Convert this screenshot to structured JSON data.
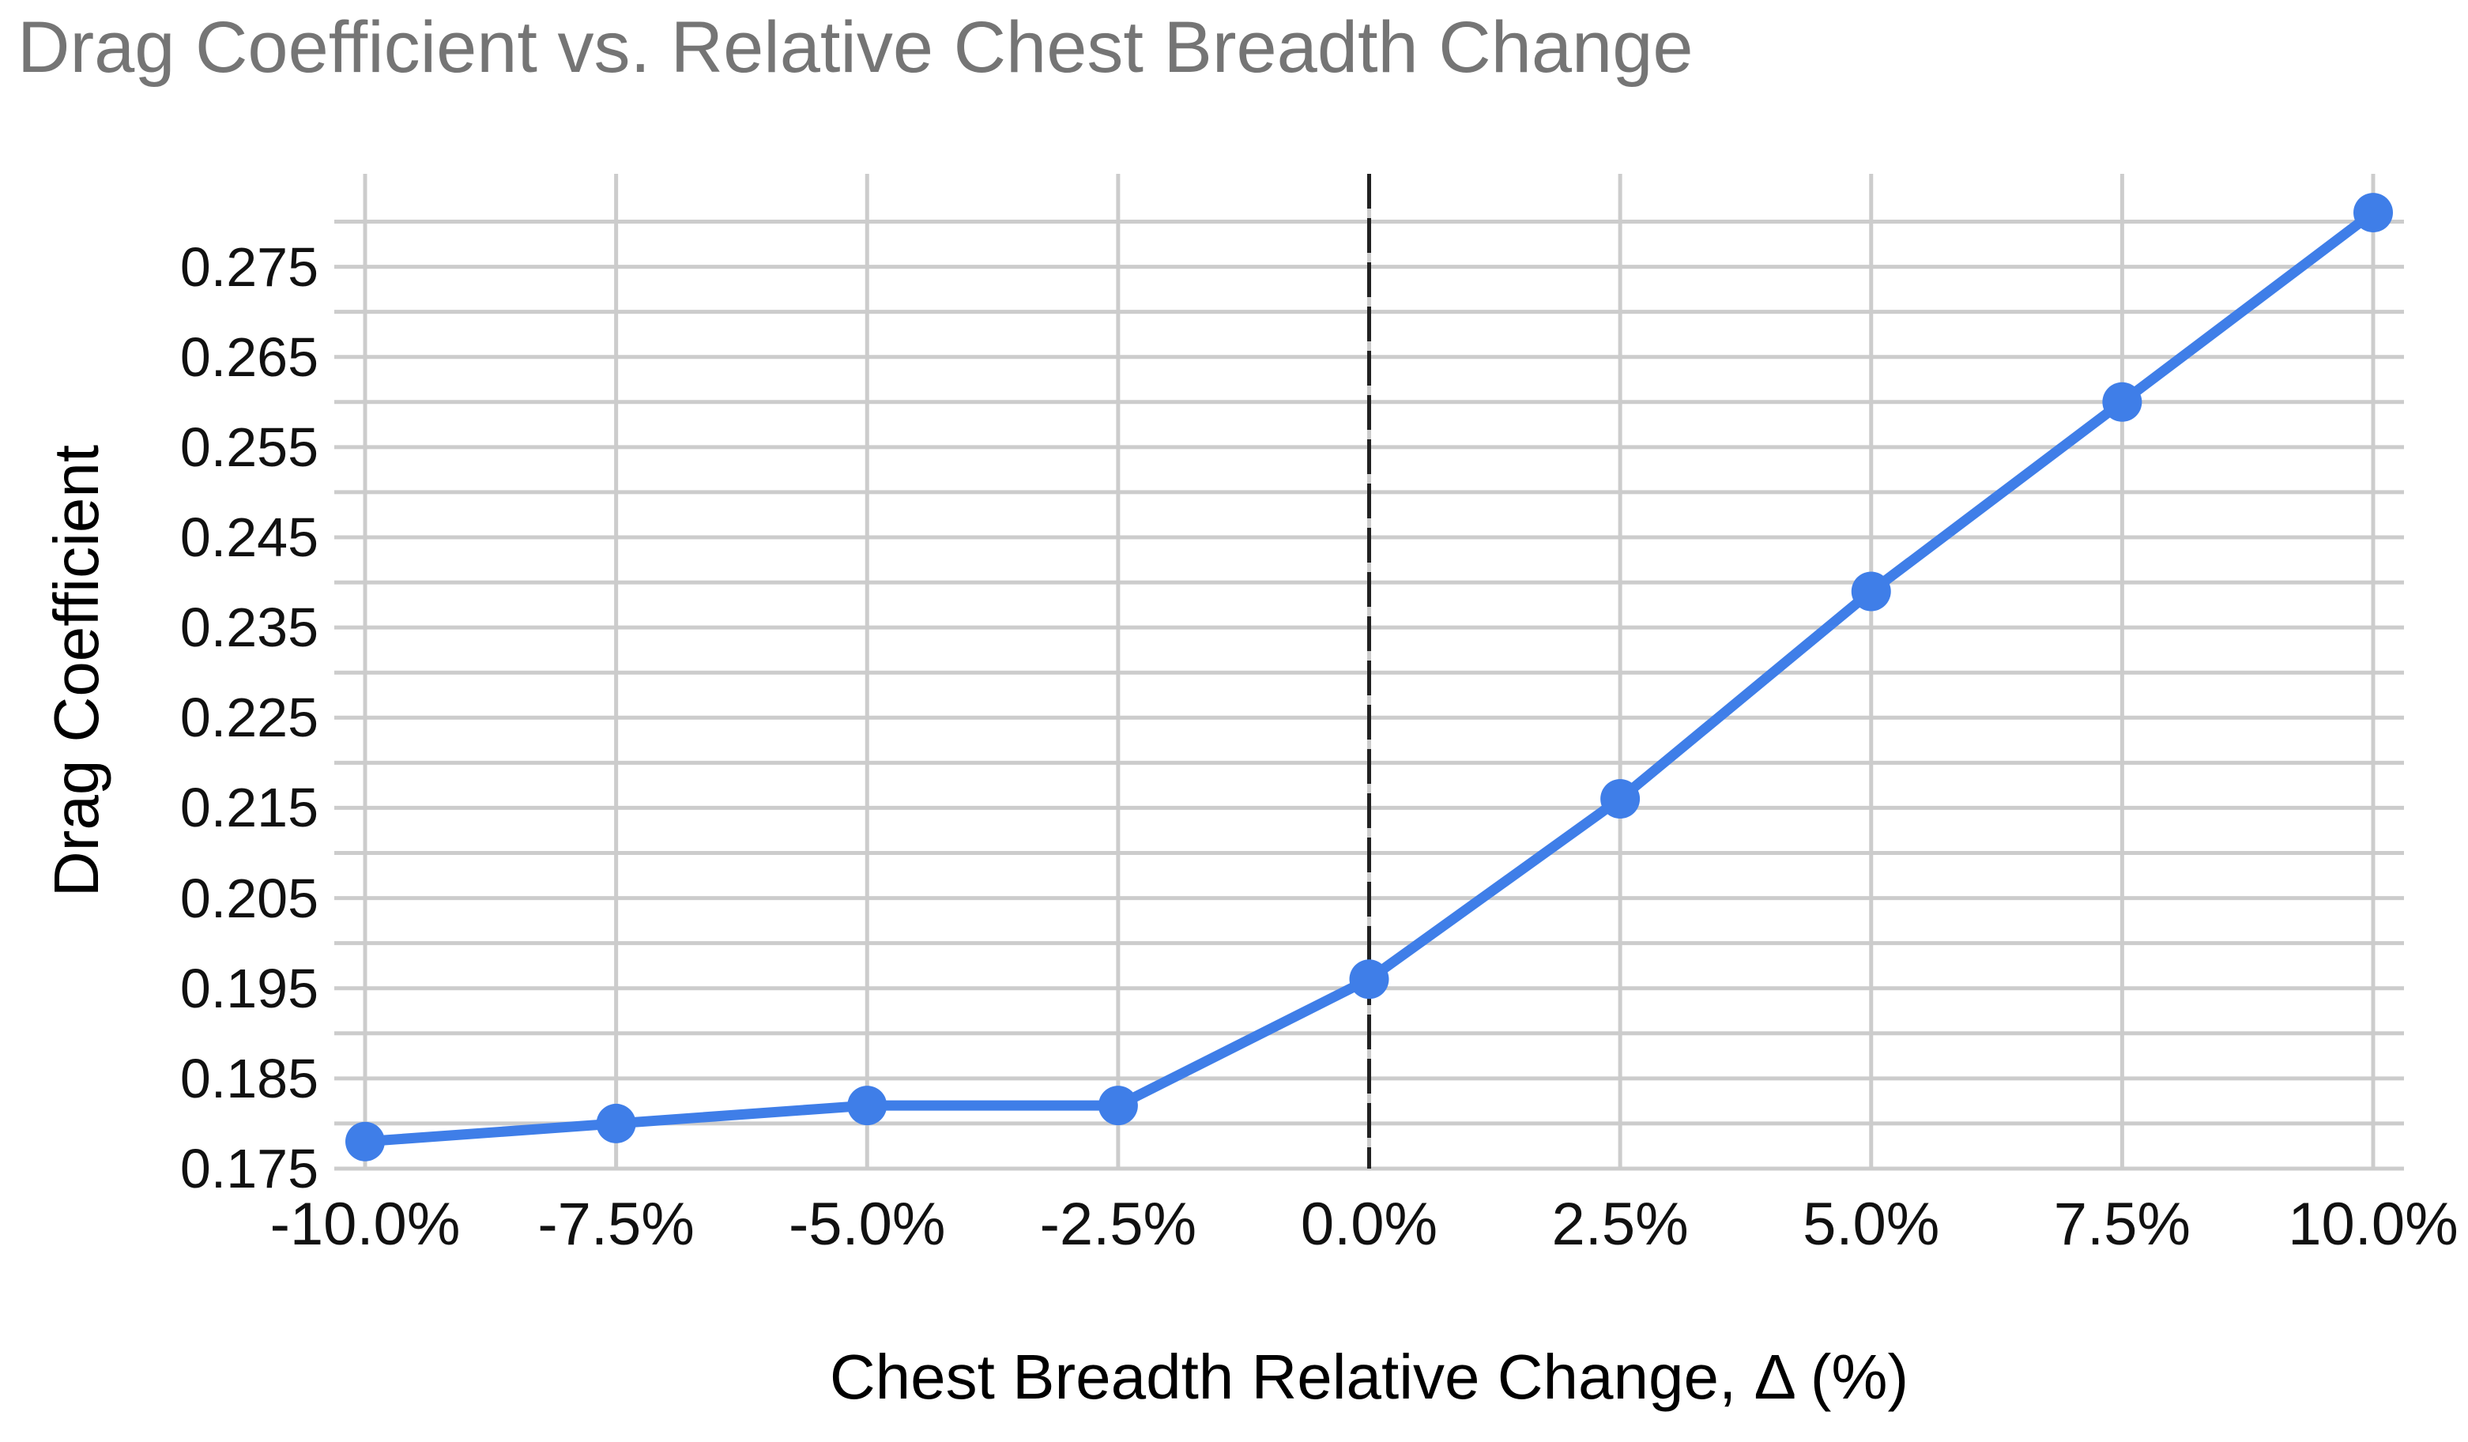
{
  "title": "Drag Coefficient vs. Relative Chest Breadth Change",
  "chart_data": {
    "type": "line",
    "title": "Drag Coefficient vs. Relative Chest Breadth Change",
    "xlabel": "Chest Breadth Relative Change, Δ (%)",
    "ylabel": "Drag Coefficient",
    "x": [
      -10,
      -7.5,
      -5,
      -2.5,
      0,
      2.5,
      5,
      7.5,
      10
    ],
    "x_tick_labels": [
      "-10.0%",
      "-7.5%",
      "-5.0%",
      "-2.5%",
      "0.0%",
      "2.5%",
      "5.0%",
      "7.5%",
      "10.0%"
    ],
    "series": [
      {
        "name": "Drag Coefficient",
        "values": [
          0.178,
          0.18,
          0.182,
          0.182,
          0.196,
          0.216,
          0.239,
          0.26,
          0.281
        ]
      }
    ],
    "y_tick_labels": [
      "0.175",
      "0.185",
      "0.195",
      "0.205",
      "0.215",
      "0.225",
      "0.235",
      "0.245",
      "0.255",
      "0.265",
      "0.275"
    ],
    "y_major_tick_values": [
      0.175,
      0.185,
      0.195,
      0.205,
      0.215,
      0.225,
      0.235,
      0.245,
      0.255,
      0.265,
      0.275
    ],
    "ylim": [
      0.175,
      0.2853
    ],
    "gridline_step": 0.005,
    "grid": true,
    "legend": "none",
    "reference_line_x": 0
  },
  "styles": {
    "series_color": "#3f7ee8",
    "grid_color": "#cccccc",
    "reference_line_color": "#212121",
    "title_color": "#757575",
    "tick_label_color": "#111111",
    "axis_title_color": "#000000",
    "background_color": "#ffffff"
  }
}
